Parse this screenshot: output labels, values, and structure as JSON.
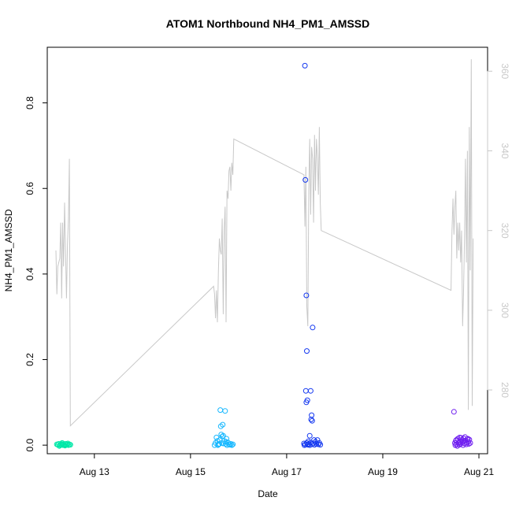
{
  "chart_data": {
    "type": "scatter",
    "title": "ATOM1 Northbound NH4_PM1_AMSSD",
    "xlabel": "Date",
    "ylabel": "NH4_PM1_AMSSD",
    "xlim": [
      12.02,
      21.18
    ],
    "ylim": [
      -0.02,
      0.93
    ],
    "y2lim": [
      264,
      366
    ],
    "x_ticks": [
      13,
      15,
      17,
      19,
      21
    ],
    "x_tick_labels": [
      "Aug 13",
      "Aug 15",
      "Aug 17",
      "Aug 19",
      "Aug 21"
    ],
    "y_ticks": [
      0.0,
      0.2,
      0.4,
      0.6,
      0.8
    ],
    "y_tick_labels": [
      "0.0",
      "0.2",
      "0.4",
      "0.6",
      "0.8"
    ],
    "y2_ticks": [
      280,
      300,
      320,
      340,
      360
    ],
    "y2_tick_labels": [
      "280",
      "300",
      "320",
      "340",
      "360"
    ],
    "grid": false,
    "colors": {
      "line": "#c8c8c8",
      "axis_right": "#c8c8c8",
      "day1": "#00e8a8",
      "day2": "#18b8ff",
      "day3": "#1438f0",
      "day4": "#7020f0"
    },
    "series": [
      {
        "color": "#00e8a8",
        "points": [
          [
            12.22,
            0.002
          ],
          [
            12.24,
            0.001
          ],
          [
            12.26,
            0.003
          ],
          [
            12.28,
            0.0
          ],
          [
            12.3,
            0.002
          ],
          [
            12.32,
            0.001
          ],
          [
            12.34,
            0.004
          ],
          [
            12.36,
            0.002
          ],
          [
            12.38,
            0.0
          ],
          [
            12.4,
            0.003
          ],
          [
            12.42,
            0.001
          ],
          [
            12.44,
            0.002
          ],
          [
            12.46,
            0.0
          ],
          [
            12.48,
            0.002
          ],
          [
            12.5,
            0.001
          ],
          [
            12.27,
            -0.002
          ],
          [
            12.33,
            0.005
          ],
          [
            12.39,
            -0.001
          ],
          [
            12.45,
            0.004
          ],
          [
            12.35,
            0.0
          ]
        ]
      },
      {
        "color": "#18b8ff",
        "points": [
          [
            15.5,
            0.0
          ],
          [
            15.52,
            0.005
          ],
          [
            15.54,
            0.018
          ],
          [
            15.56,
            0.01
          ],
          [
            15.58,
            0.002
          ],
          [
            15.6,
            0.003
          ],
          [
            15.62,
            0.082
          ],
          [
            15.63,
            0.044
          ],
          [
            15.64,
            0.025
          ],
          [
            15.65,
            0.005
          ],
          [
            15.66,
            0.02
          ],
          [
            15.67,
            0.048
          ],
          [
            15.68,
            0.022
          ],
          [
            15.7,
            0.01
          ],
          [
            15.72,
            0.08
          ],
          [
            15.73,
            0.003
          ],
          [
            15.74,
            0.008
          ],
          [
            15.76,
            0.0
          ],
          [
            15.78,
            0.006
          ],
          [
            15.8,
            0.002
          ],
          [
            15.82,
            0.001
          ],
          [
            15.84,
            0.003
          ],
          [
            15.86,
            0.0
          ],
          [
            15.88,
            0.002
          ],
          [
            15.68,
            0.004
          ],
          [
            15.61,
            0.012
          ],
          [
            15.57,
            0.0
          ],
          [
            15.75,
            0.015
          ]
        ]
      },
      {
        "color": "#1438f0",
        "points": [
          [
            17.38,
            0.887
          ],
          [
            17.39,
            0.62
          ],
          [
            17.41,
            0.35
          ],
          [
            17.42,
            0.22
          ],
          [
            17.4,
            0.127
          ],
          [
            17.41,
            0.1
          ],
          [
            17.43,
            0.105
          ],
          [
            17.5,
            0.127
          ],
          [
            17.54,
            0.275
          ],
          [
            17.52,
            0.07
          ],
          [
            17.51,
            0.06
          ],
          [
            17.53,
            0.057
          ],
          [
            17.48,
            0.022
          ],
          [
            17.36,
            0.004
          ],
          [
            17.37,
            0.0
          ],
          [
            17.39,
            0.002
          ],
          [
            17.42,
            0.005
          ],
          [
            17.44,
            0.001
          ],
          [
            17.46,
            0.003
          ],
          [
            17.48,
            0.0
          ],
          [
            17.5,
            0.006
          ],
          [
            17.52,
            0.002
          ],
          [
            17.55,
            0.004
          ],
          [
            17.58,
            0.001
          ],
          [
            17.6,
            0.008
          ],
          [
            17.62,
            0.003
          ],
          [
            17.64,
            0.012
          ],
          [
            17.66,
            0.002
          ],
          [
            17.68,
            0.005
          ],
          [
            17.7,
            0.001
          ],
          [
            17.45,
            0.009
          ],
          [
            17.57,
            0.012
          ]
        ]
      },
      {
        "color": "#7020f0",
        "points": [
          [
            20.48,
            0.078
          ],
          [
            20.5,
            0.005
          ],
          [
            20.52,
            0.01
          ],
          [
            20.54,
            0.002
          ],
          [
            20.56,
            0.015
          ],
          [
            20.58,
            0.006
          ],
          [
            20.6,
            0.018
          ],
          [
            20.62,
            0.003
          ],
          [
            20.64,
            0.012
          ],
          [
            20.66,
            0.007
          ],
          [
            20.68,
            0.016
          ],
          [
            20.7,
            0.004
          ],
          [
            20.72,
            0.011
          ],
          [
            20.74,
            0.002
          ],
          [
            20.76,
            0.014
          ],
          [
            20.78,
            0.008
          ],
          [
            20.8,
            0.013
          ],
          [
            20.82,
            0.005
          ],
          [
            20.51,
            0.0
          ],
          [
            20.55,
            -0.002
          ],
          [
            20.59,
            0.001
          ],
          [
            20.63,
            0.017
          ],
          [
            20.67,
            0.0
          ],
          [
            20.71,
            0.019
          ],
          [
            20.75,
            0.006
          ],
          [
            20.79,
            0.003
          ],
          [
            20.53,
            0.012
          ],
          [
            20.61,
            0.009
          ],
          [
            20.69,
            0.01
          ],
          [
            20.77,
            0.015
          ]
        ]
      }
    ],
    "line_series": {
      "axis": "right",
      "points": [
        [
          12.2,
          315
        ],
        [
          12.22,
          304
        ],
        [
          12.24,
          311
        ],
        [
          12.26,
          312
        ],
        [
          12.28,
          313
        ],
        [
          12.3,
          322
        ],
        [
          12.32,
          303
        ],
        [
          12.34,
          322
        ],
        [
          12.36,
          311
        ],
        [
          12.38,
          327
        ],
        [
          12.4,
          315
        ],
        [
          12.42,
          303
        ],
        [
          12.44,
          316
        ],
        [
          12.46,
          323
        ],
        [
          12.48,
          338
        ],
        [
          12.5,
          271
        ],
        [
          15.48,
          306
        ],
        [
          15.5,
          304
        ],
        [
          15.52,
          298
        ],
        [
          15.54,
          305
        ],
        [
          15.56,
          297
        ],
        [
          15.58,
          310
        ],
        [
          15.6,
          318
        ],
        [
          15.62,
          315
        ],
        [
          15.64,
          314
        ],
        [
          15.66,
          323
        ],
        [
          15.68,
          299
        ],
        [
          15.7,
          320
        ],
        [
          15.72,
          326
        ],
        [
          15.74,
          297
        ],
        [
          15.76,
          330
        ],
        [
          15.78,
          328
        ],
        [
          15.8,
          335
        ],
        [
          15.82,
          336
        ],
        [
          15.84,
          330
        ],
        [
          15.86,
          337
        ],
        [
          15.88,
          334
        ],
        [
          15.9,
          343
        ],
        [
          17.36,
          334
        ],
        [
          17.38,
          321
        ],
        [
          17.4,
          336
        ],
        [
          17.42,
          301
        ],
        [
          17.44,
          296
        ],
        [
          17.46,
          330
        ],
        [
          17.48,
          343
        ],
        [
          17.5,
          324
        ],
        [
          17.52,
          341
        ],
        [
          17.54,
          338
        ],
        [
          17.56,
          322
        ],
        [
          17.58,
          344
        ],
        [
          17.6,
          330
        ],
        [
          17.62,
          343
        ],
        [
          17.64,
          338
        ],
        [
          17.66,
          329
        ],
        [
          17.68,
          346
        ],
        [
          17.7,
          327
        ],
        [
          17.72,
          320
        ],
        [
          20.42,
          305
        ],
        [
          20.44,
          320
        ],
        [
          20.46,
          328
        ],
        [
          20.48,
          319
        ],
        [
          20.5,
          326
        ],
        [
          20.52,
          330
        ],
        [
          20.54,
          313
        ],
        [
          20.56,
          322
        ],
        [
          20.58,
          315
        ],
        [
          20.6,
          322
        ],
        [
          20.62,
          312
        ],
        [
          20.64,
          320
        ],
        [
          20.66,
          296
        ],
        [
          20.68,
          305
        ],
        [
          20.7,
          318
        ],
        [
          20.72,
          338
        ],
        [
          20.74,
          312
        ],
        [
          20.76,
          340
        ],
        [
          20.78,
          275
        ],
        [
          20.8,
          346
        ],
        [
          20.82,
          310
        ],
        [
          20.84,
          363
        ],
        [
          20.86,
          276
        ],
        [
          20.88,
          318
        ]
      ]
    }
  }
}
